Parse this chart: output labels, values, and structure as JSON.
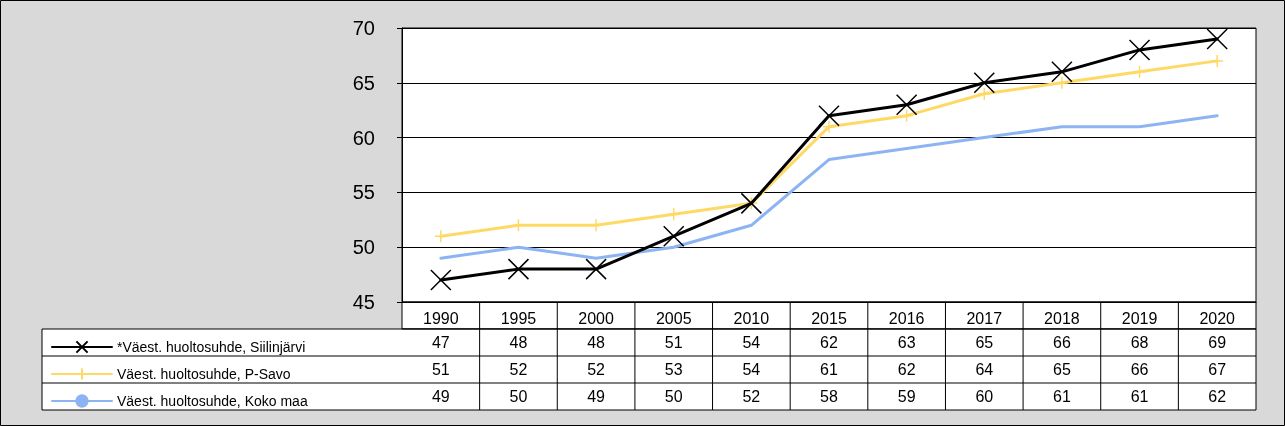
{
  "chart_data": {
    "type": "line",
    "categories": [
      "1990",
      "1995",
      "2000",
      "2005",
      "2010",
      "2015",
      "2016",
      "2017",
      "2018",
      "2019",
      "2020"
    ],
    "series": [
      {
        "name": "*Väest. huoltosuhde, Siilinjärvi",
        "color": "#000000",
        "marker": "cross",
        "values": [
          47,
          48,
          48,
          51,
          54,
          62,
          63,
          65,
          66,
          68,
          69
        ]
      },
      {
        "name": "Väest. huoltosuhde, P-Savo",
        "color": "#ffd966",
        "marker": "cross",
        "values": [
          51,
          52,
          52,
          53,
          54,
          61,
          62,
          64,
          65,
          66,
          67
        ]
      },
      {
        "name": "Väest. huoltosuhde, Koko maa",
        "color": "#8db4f2",
        "marker": "none",
        "values": [
          49,
          50,
          49,
          50,
          52,
          58,
          59,
          60,
          61,
          61,
          62
        ]
      }
    ],
    "ylim": [
      45,
      70
    ],
    "yticks": [
      45,
      50,
      55,
      60,
      65,
      70
    ],
    "grid": "y",
    "legend": "bottom",
    "data_labels": true,
    "line_style": "solid"
  }
}
